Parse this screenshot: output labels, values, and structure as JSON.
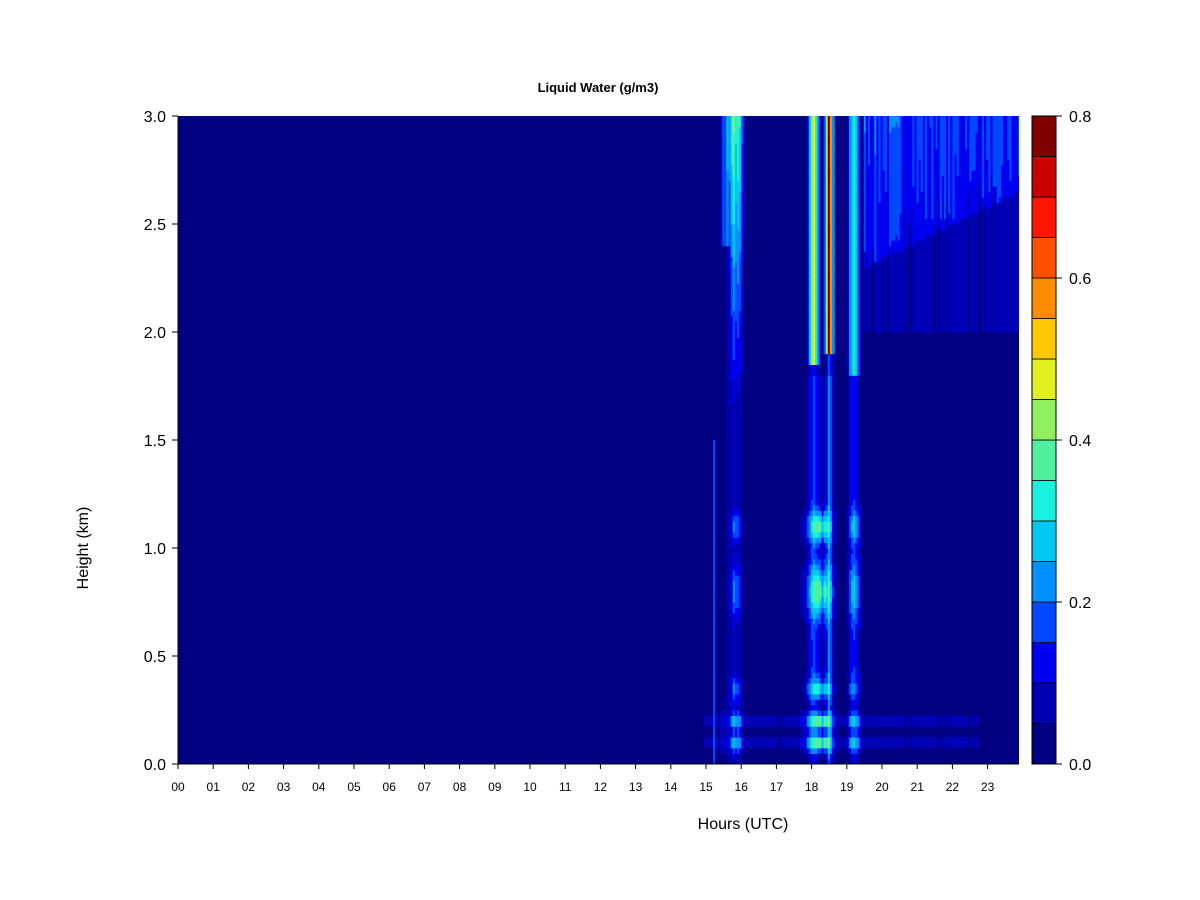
{
  "chart_data": {
    "type": "heatmap",
    "title": "Liquid Water (g/m3)",
    "xlabel": "Hours (UTC)",
    "ylabel": "Height (km)",
    "xlim": [
      0,
      23.9
    ],
    "ylim": [
      0,
      3.0
    ],
    "x_ticks": [
      "00",
      "01",
      "02",
      "03",
      "04",
      "05",
      "06",
      "07",
      "08",
      "09",
      "10",
      "11",
      "12",
      "13",
      "14",
      "15",
      "16",
      "17",
      "18",
      "19",
      "20",
      "21",
      "22",
      "23"
    ],
    "y_ticks": [
      "0.0",
      "0.5",
      "1.0",
      "1.5",
      "2.0",
      "2.5",
      "3.0"
    ],
    "colorbar": {
      "range": [
        0,
        0.8
      ],
      "step": 0.05,
      "tick_labels": [
        "0.0",
        "0.2",
        "0.4",
        "0.6",
        "0.8"
      ],
      "levels": [
        {
          "from": 0.0,
          "to": 0.05,
          "color": "#000080"
        },
        {
          "from": 0.05,
          "to": 0.1,
          "color": "#0000B5"
        },
        {
          "from": 0.1,
          "to": 0.15,
          "color": "#0000F0"
        },
        {
          "from": 0.15,
          "to": 0.2,
          "color": "#0048FF"
        },
        {
          "from": 0.2,
          "to": 0.25,
          "color": "#0090FF"
        },
        {
          "from": 0.25,
          "to": 0.3,
          "color": "#00C8F0"
        },
        {
          "from": 0.3,
          "to": 0.35,
          "color": "#18F0E0"
        },
        {
          "from": 0.35,
          "to": 0.4,
          "color": "#50F0A0"
        },
        {
          "from": 0.4,
          "to": 0.45,
          "color": "#90F060"
        },
        {
          "from": 0.45,
          "to": 0.5,
          "color": "#E0F020"
        },
        {
          "from": 0.5,
          "to": 0.55,
          "color": "#FFC800"
        },
        {
          "from": 0.55,
          "to": 0.6,
          "color": "#FF8C00"
        },
        {
          "from": 0.6,
          "to": 0.65,
          "color": "#FF5000"
        },
        {
          "from": 0.65,
          "to": 0.7,
          "color": "#FF1400"
        },
        {
          "from": 0.7,
          "to": 0.75,
          "color": "#C80000"
        },
        {
          "from": 0.75,
          "to": 0.8,
          "color": "#800000"
        }
      ]
    },
    "cloud_features": [
      {
        "t0": 15.6,
        "t1": 16.05,
        "peak": 0.32,
        "z_from": 1.9,
        "z_to": 3.0
      },
      {
        "t0": 17.85,
        "t1": 18.25,
        "peak": 0.5,
        "z_from": 1.8,
        "z_to": 3.0
      },
      {
        "t0": 18.3,
        "t1": 18.65,
        "peak": 0.72,
        "z_from": 1.85,
        "z_to": 3.0
      },
      {
        "t0": 19.0,
        "t1": 19.4,
        "peak": 0.38,
        "z_from": 1.8,
        "z_to": 3.0
      }
    ]
  }
}
